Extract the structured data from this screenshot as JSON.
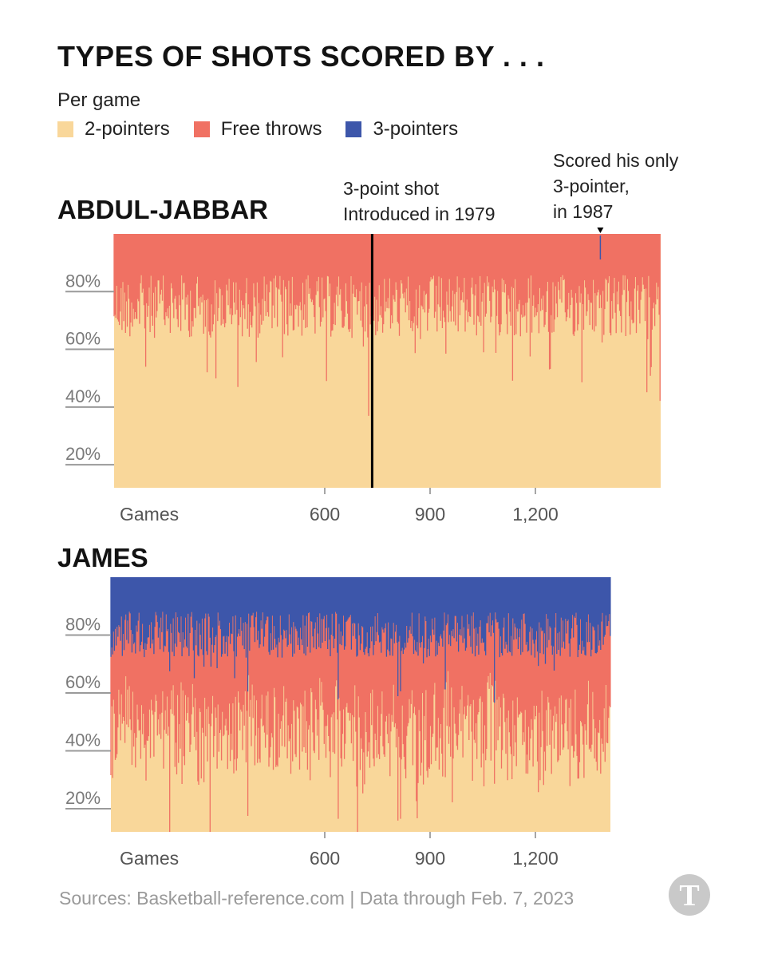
{
  "title": "TYPES OF SHOTS SCORED BY . . .",
  "subtitle": "Per game",
  "legend": [
    {
      "label": "2-pointers",
      "color": "#f9d79a"
    },
    {
      "label": "Free throws",
      "color": "#f07163"
    },
    {
      "label": "3-pointers",
      "color": "#3d56aa"
    }
  ],
  "annotations": {
    "three_point_intro": "3-point shot\nIntroduced in 1979",
    "only_three": "Scored his only\n3-pointer,\nin 1987"
  },
  "source": "Sources: Basketball-reference.com | Data through Feb. 7, 2023",
  "chart_data": [
    {
      "type": "area",
      "panel": "ABDUL-JABBAR",
      "xlabel": "Games",
      "x_ticks": [
        600,
        900,
        1200
      ],
      "x_tick_labels": [
        "600",
        "900",
        "1,200"
      ],
      "y_ticks": [
        20,
        40,
        60,
        80
      ],
      "y_tick_labels": [
        "20%",
        "40%",
        "60%",
        "80%"
      ],
      "xlim": [
        0,
        1560
      ],
      "ylim": [
        12,
        100
      ],
      "series": [
        {
          "name": "2-pointers",
          "values_approx_mean": 78
        },
        {
          "name": "Free throws",
          "values_approx_mean": 22
        },
        {
          "name": "3-pointers",
          "values_approx_mean": 0
        }
      ],
      "events": [
        {
          "game": 735,
          "text": "3-point shot Introduced in 1979"
        },
        {
          "game": 1385,
          "text": "Scored his only 3-pointer, in 1987"
        }
      ]
    },
    {
      "type": "area",
      "panel": "JAMES",
      "xlabel": "Games",
      "x_ticks": [
        600,
        900,
        1200
      ],
      "x_tick_labels": [
        "600",
        "900",
        "1,200"
      ],
      "y_ticks": [
        20,
        40,
        60,
        80
      ],
      "y_tick_labels": [
        "20%",
        "40%",
        "60%",
        "80%"
      ],
      "xlim": [
        0,
        1430
      ],
      "ylim": [
        12,
        100
      ],
      "series": [
        {
          "name": "2-pointers",
          "values_approx_mean": 50
        },
        {
          "name": "Free throws",
          "values_approx_mean": 30
        },
        {
          "name": "3-pointers",
          "values_approx_mean": 20
        }
      ]
    }
  ]
}
